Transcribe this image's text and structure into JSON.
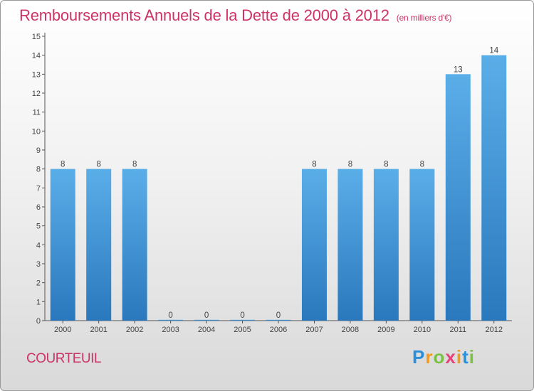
{
  "chart_data": {
    "type": "bar",
    "title": "Remboursements Annuels de la Dette de 2000 à 2012",
    "subtitle": "(en milliers d'€)",
    "categories": [
      "2000",
      "2001",
      "2002",
      "2003",
      "2004",
      "2005",
      "2006",
      "2007",
      "2008",
      "2009",
      "2010",
      "2011",
      "2012"
    ],
    "values": [
      8,
      8,
      8,
      0,
      0,
      0,
      0,
      8,
      8,
      8,
      8,
      13,
      14
    ],
    "ylim": [
      0,
      15
    ],
    "yticks": [
      0,
      1,
      2,
      3,
      4,
      5,
      6,
      7,
      8,
      9,
      10,
      11,
      12,
      13,
      14,
      15
    ],
    "grid": false,
    "bar_color": "#3d8fd6"
  },
  "footer": {
    "commune": "COURTEUIL",
    "logo_letters": [
      "P",
      "r",
      "o",
      "x",
      "i",
      "t",
      "i"
    ],
    "logo_colors": [
      "#2a8fd8",
      "#f29a1f",
      "#7cc242",
      "#e8417a",
      "#f29a1f",
      "#2a8fd8",
      "#7cc242"
    ]
  }
}
